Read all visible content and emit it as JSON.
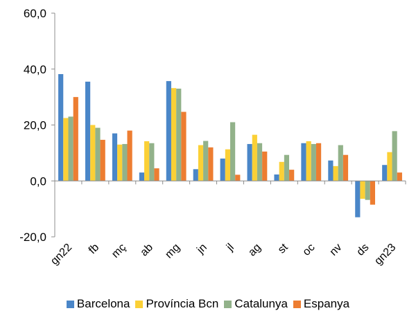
{
  "chart_data": {
    "type": "bar",
    "categories": [
      "gn22",
      "fb",
      "mç",
      "ab",
      "mg",
      "jn",
      "jl",
      "ag",
      "st",
      "oc",
      "nv",
      "ds",
      "gn23"
    ],
    "series": [
      {
        "name": "Barcelona",
        "color": "#4A86C8",
        "values": [
          38.2,
          35.5,
          17.0,
          3.0,
          35.7,
          4.2,
          8.0,
          13.2,
          2.3,
          13.5,
          7.3,
          -13.0,
          5.7
        ]
      },
      {
        "name": "Província Bcn",
        "color": "#FBD036",
        "values": [
          22.5,
          20.0,
          13.0,
          14.2,
          33.2,
          12.8,
          11.3,
          16.5,
          6.8,
          14.2,
          5.3,
          -6.4,
          10.3
        ]
      },
      {
        "name": "Catalunya",
        "color": "#92B28A",
        "values": [
          23.0,
          19.0,
          13.2,
          13.5,
          33.0,
          14.3,
          21.0,
          13.5,
          9.3,
          13.2,
          12.8,
          -6.8,
          17.8
        ]
      },
      {
        "name": "Espanya",
        "color": "#ED7D31",
        "values": [
          30.0,
          14.7,
          18.0,
          4.5,
          24.7,
          12.0,
          2.2,
          10.5,
          4.0,
          13.5,
          9.3,
          -8.5,
          3.0
        ]
      }
    ],
    "y_ticks": [
      "60,0",
      "40,0",
      "20,0",
      "0,0",
      "-20,0"
    ],
    "y_tick_values": [
      60,
      40,
      20,
      0,
      -20
    ],
    "ylim": [
      -20,
      60
    ],
    "title": "",
    "xlabel": "",
    "ylabel": "",
    "legend_position": "bottom",
    "grid": false
  }
}
